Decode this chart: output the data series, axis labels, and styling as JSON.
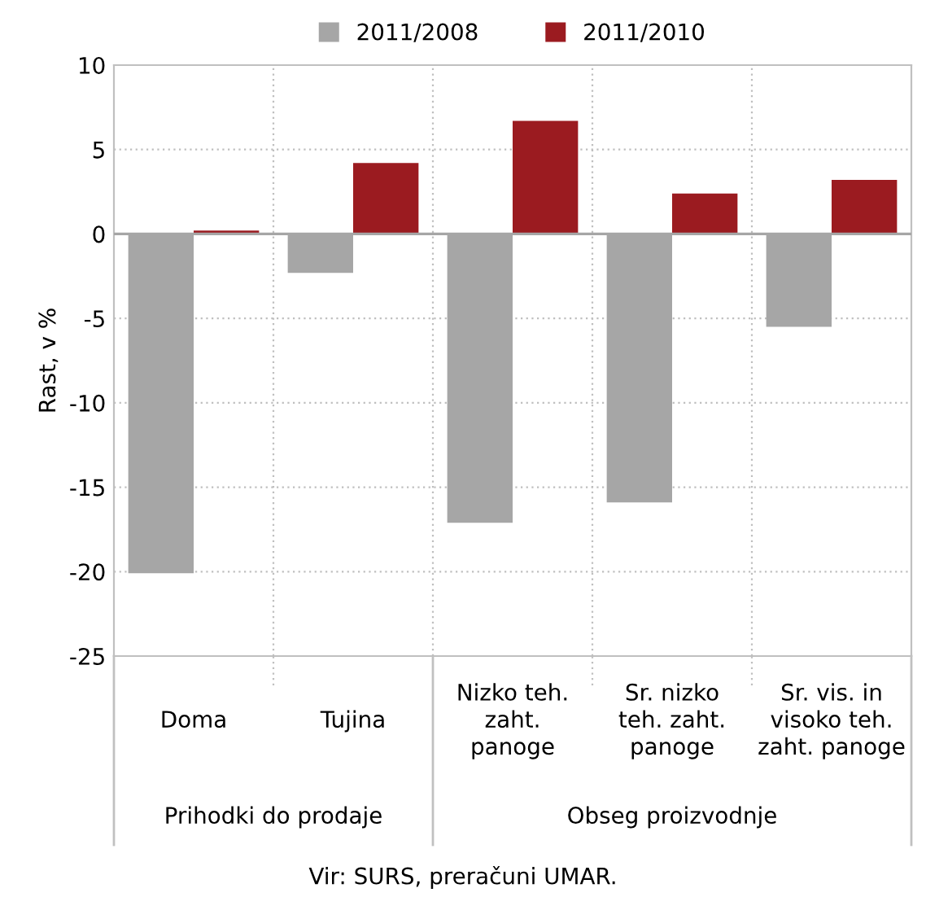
{
  "chart_data": {
    "type": "bar",
    "ylabel": "Rast, v %",
    "categories": [
      "Doma",
      "Tujina",
      "Nizko teh.\nzaht.\npanoge",
      "Sr. nizko\nteh. zaht.\npanoge",
      "Sr. vis. in\nvisoko teh.\nzaht. panoge"
    ],
    "series": [
      {
        "name": "2011/2008",
        "color": "#a6a6a6",
        "values": [
          -20.1,
          -2.3,
          -17.1,
          -15.9,
          -5.5
        ]
      },
      {
        "name": "2011/2010",
        "color": "#9b1b20",
        "values": [
          0.2,
          4.2,
          6.7,
          2.4,
          3.2
        ]
      }
    ],
    "ylim": [
      -25,
      10
    ],
    "yticks": [
      -25,
      -20,
      -15,
      -10,
      -5,
      0,
      5,
      10
    ],
    "grid": true,
    "legend": "top",
    "annotations": [
      "Prihodki do prodaje",
      "Obseg proizvodnje",
      "Vir: SURS, preračuni UMAR."
    ]
  }
}
